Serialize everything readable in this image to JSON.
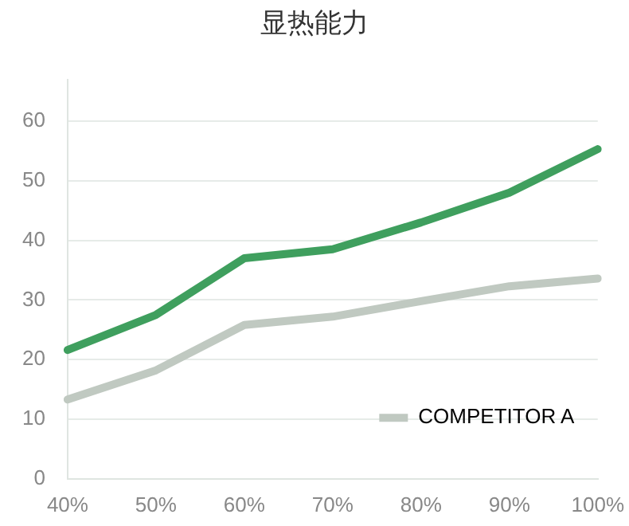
{
  "chart_data": {
    "type": "line",
    "title": "显热能力",
    "categories": [
      "40%",
      "50%",
      "60%",
      "70%",
      "80%",
      "90%",
      "100%"
    ],
    "series": [
      {
        "color": "#3f9f5e",
        "values": [
          21.6,
          27.5,
          37,
          38.5,
          43,
          48,
          55.3
        ]
      },
      {
        "name": "COMPETITOR A",
        "color": "#c0c9c1",
        "values": [
          13.3,
          18.2,
          25.8,
          27.2,
          29.8,
          32.3,
          33.6
        ]
      }
    ],
    "ylim": [
      0,
      67
    ],
    "yticks": [
      0,
      10,
      20,
      30,
      40,
      50,
      60
    ],
    "grid": "y",
    "legend": "bottom right",
    "marker": "none",
    "line_style": "solid"
  }
}
